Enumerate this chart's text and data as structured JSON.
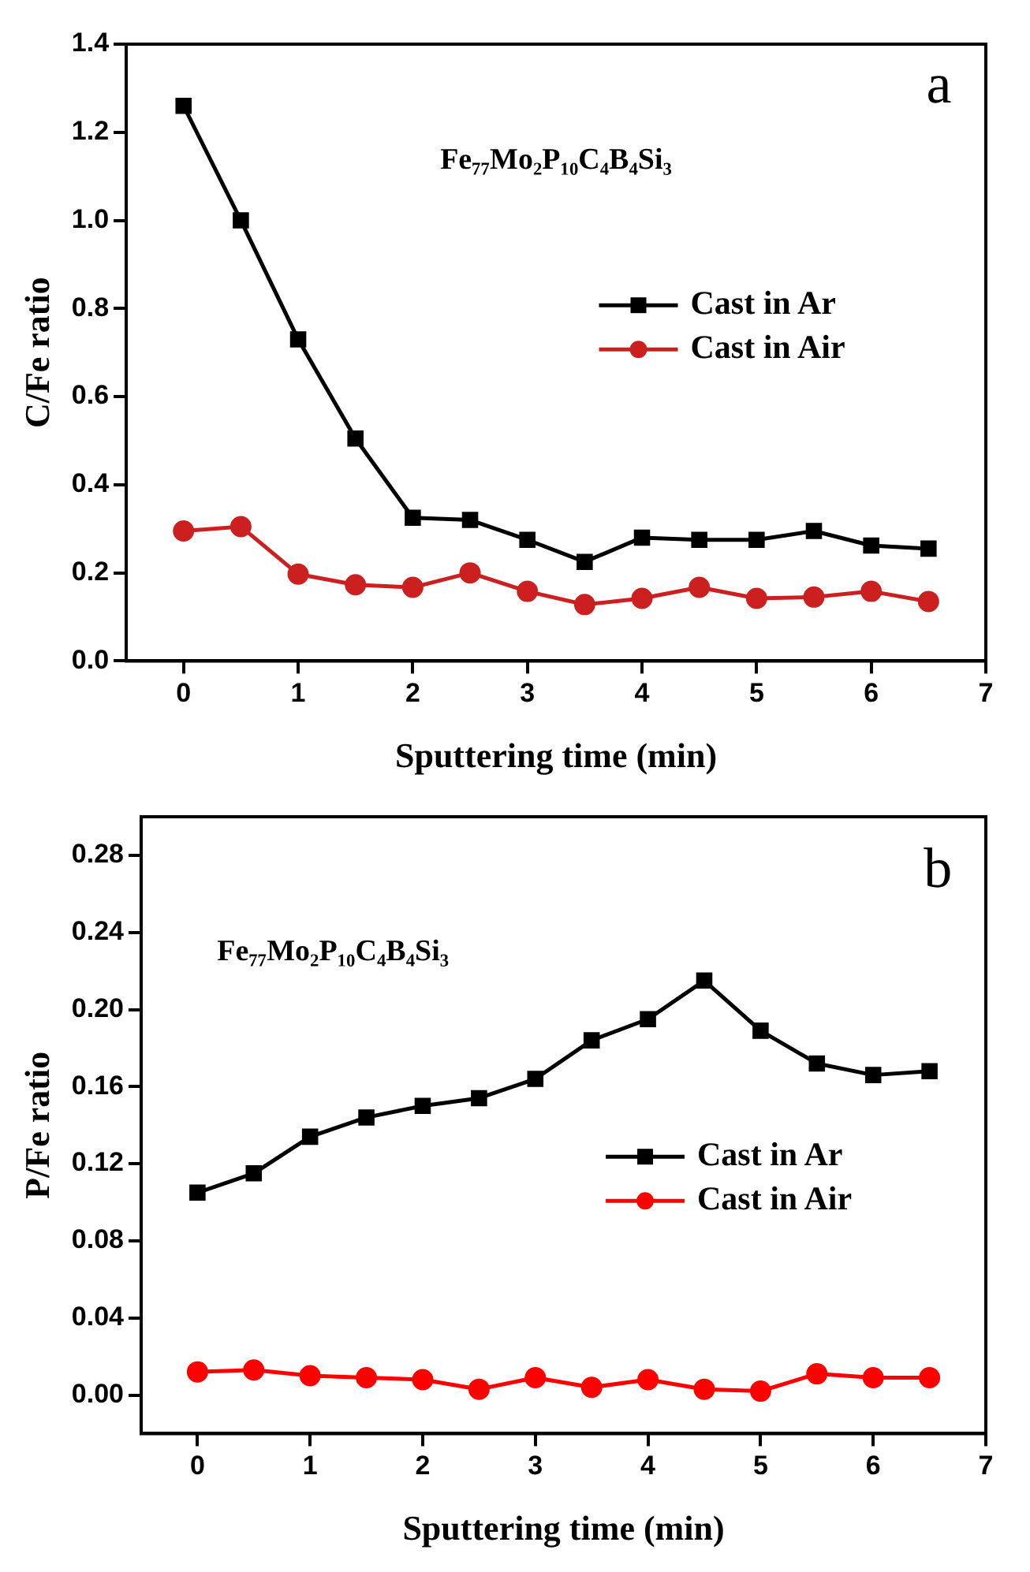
{
  "chart_data": [
    {
      "type": "line",
      "xlabel": "Sputtering time (min)",
      "ylabel": "C/Fe ratio",
      "annotations": [
        "a",
        "Fe₇₇Mo₂P₁₀C₄B₄Si₃"
      ],
      "x": [
        0,
        0.5,
        1,
        1.5,
        2,
        2.5,
        3,
        3.5,
        4,
        4.5,
        5,
        5.5,
        6,
        6.5
      ],
      "xlim": [
        -0.5,
        7
      ],
      "xticks": [
        0,
        1,
        2,
        3,
        4,
        5,
        6,
        7
      ],
      "ylim": [
        0,
        1.4
      ],
      "yticks": [
        {
          "value": 0,
          "label": "0.0"
        },
        0.2,
        0.4,
        0.6,
        0.8,
        {
          "value": 1,
          "label": "1.0"
        },
        1.2,
        1.4
      ],
      "grid": false,
      "legend": "right",
      "series": [
        {
          "name": "Cast in Ar",
          "color": "#000000",
          "marker": "square",
          "values": [
            1.26,
            1.0,
            0.73,
            0.505,
            0.325,
            0.32,
            0.275,
            0.225,
            0.28,
            0.275,
            0.275,
            0.295,
            0.262,
            0.255
          ]
        },
        {
          "name": "Cast in Air",
          "color": "#cc2020",
          "marker": "circle",
          "values": [
            0.295,
            0.305,
            0.197,
            0.173,
            0.167,
            0.2,
            0.158,
            0.128,
            0.142,
            0.167,
            0.142,
            0.145,
            0.158,
            0.135
          ]
        }
      ]
    },
    {
      "type": "line",
      "xlabel": "Sputtering time (min)",
      "ylabel": "P/Fe ratio",
      "annotations": [
        "b",
        "Fe₇₇Mo₂P₁₀C₄B₄Si₃"
      ],
      "x": [
        0,
        0.5,
        1,
        1.5,
        2,
        2.5,
        3,
        3.5,
        4,
        4.5,
        5,
        5.5,
        6,
        6.5
      ],
      "xlim": [
        -0.5,
        7
      ],
      "xticks": [
        0,
        1,
        2,
        3,
        4,
        5,
        6,
        7
      ],
      "ylim": [
        -0.02,
        0.3
      ],
      "yticks": [
        {
          "value": 0,
          "label": "0.00"
        },
        0.04,
        0.08,
        0.12,
        0.16,
        {
          "value": 0.2,
          "label": "0.20"
        },
        0.24,
        0.28
      ],
      "grid": false,
      "legend": "right",
      "series": [
        {
          "name": "Cast in Ar",
          "color": "#000000",
          "marker": "square",
          "values": [
            0.105,
            0.115,
            0.134,
            0.144,
            0.15,
            0.154,
            0.164,
            0.184,
            0.195,
            0.215,
            0.189,
            0.172,
            0.166,
            0.168
          ]
        },
        {
          "name": "Cast in Air",
          "color": "#ff0000",
          "marker": "circle",
          "values": [
            0.012,
            0.013,
            0.01,
            0.009,
            0.008,
            0.003,
            0.009,
            0.004,
            0.008,
            0.003,
            0.002,
            0.011,
            0.009,
            0.009
          ]
        }
      ]
    }
  ]
}
